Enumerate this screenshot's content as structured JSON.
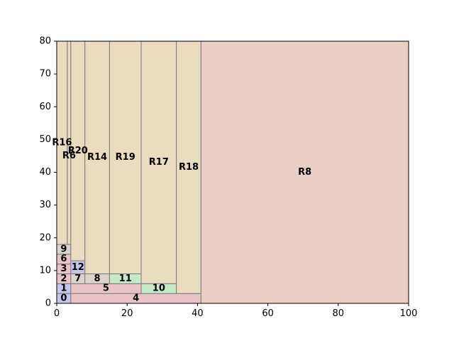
{
  "chart_data": {
    "type": "treemap-packing",
    "xlim": [
      0,
      100
    ],
    "ylim": [
      0,
      80
    ],
    "xticks": [
      0,
      20,
      40,
      60,
      80,
      100
    ],
    "yticks": [
      0,
      10,
      20,
      30,
      40,
      50,
      60,
      70,
      80
    ],
    "colors": {
      "blue": "#c5c5ec",
      "pink": "#eac3c8",
      "tan": "#eadcbf",
      "gray": "#dad4cc",
      "green": "#c6eac6",
      "salmon": "#ebcfc5"
    },
    "rects": [
      {
        "label": "0",
        "x": 0,
        "y": 0,
        "w": 4,
        "h": 3,
        "color": "blue",
        "lx": 2,
        "ly": 1.5
      },
      {
        "label": "1",
        "x": 0,
        "y": 3,
        "w": 4,
        "h": 3,
        "color": "blue",
        "lx": 2,
        "ly": 4.5
      },
      {
        "label": "2",
        "x": 0,
        "y": 6,
        "w": 4,
        "h": 3,
        "color": "pink",
        "lx": 2,
        "ly": 7.5
      },
      {
        "label": "3",
        "x": 0,
        "y": 9,
        "w": 4,
        "h": 3,
        "color": "pink",
        "lx": 2,
        "ly": 10.5
      },
      {
        "label": "6",
        "x": 0,
        "y": 12,
        "w": 4,
        "h": 3,
        "color": "pink",
        "lx": 2,
        "ly": 13.5
      },
      {
        "label": "9",
        "x": 0,
        "y": 15,
        "w": 4,
        "h": 3,
        "color": "gray",
        "lx": 2,
        "ly": 16.5
      },
      {
        "label": "R16",
        "x": 0,
        "y": 18,
        "w": 3,
        "h": 62,
        "color": "tan",
        "lx": 1.5,
        "ly": 49
      },
      {
        "label": "R6",
        "x": 3,
        "y": 18,
        "w": 1,
        "h": 62,
        "color": "tan",
        "lx": 3.5,
        "ly": 45
      },
      {
        "label": "4",
        "x": 4,
        "y": 0,
        "w": 37,
        "h": 3,
        "color": "pink",
        "lx": 22.5,
        "ly": 1.5
      },
      {
        "label": "5",
        "x": 4,
        "y": 3,
        "w": 20,
        "h": 3,
        "color": "pink",
        "lx": 14,
        "ly": 4.5
      },
      {
        "label": "10",
        "x": 24,
        "y": 3,
        "w": 10,
        "h": 3,
        "color": "green",
        "lx": 29,
        "ly": 4.5
      },
      {
        "label": "7",
        "x": 4,
        "y": 6,
        "w": 4,
        "h": 3,
        "color": "gray",
        "lx": 6,
        "ly": 7.5
      },
      {
        "label": "12",
        "x": 4,
        "y": 9,
        "w": 4,
        "h": 4,
        "color": "blue",
        "lx": 6,
        "ly": 11
      },
      {
        "label": "8",
        "x": 8,
        "y": 6,
        "w": 7,
        "h": 3,
        "color": "gray",
        "lx": 11.5,
        "ly": 7.5
      },
      {
        "label": "11",
        "x": 15,
        "y": 6,
        "w": 9,
        "h": 3,
        "color": "green",
        "lx": 19.5,
        "ly": 7.5
      },
      {
        "label": "R20",
        "x": 4,
        "y": 13,
        "w": 4,
        "h": 67,
        "color": "tan",
        "lx": 6,
        "ly": 46.5
      },
      {
        "label": "R14",
        "x": 8,
        "y": 9,
        "w": 7,
        "h": 71,
        "color": "tan",
        "lx": 11.5,
        "ly": 44.5
      },
      {
        "label": "R19",
        "x": 15,
        "y": 9,
        "w": 9,
        "h": 71,
        "color": "tan",
        "lx": 19.5,
        "ly": 44.5
      },
      {
        "label": "R17",
        "x": 24,
        "y": 6,
        "w": 10,
        "h": 74,
        "color": "tan",
        "lx": 29,
        "ly": 43
      },
      {
        "label": "R18",
        "x": 34,
        "y": 3,
        "w": 7,
        "h": 77,
        "color": "tan",
        "lx": 37.5,
        "ly": 41.5
      },
      {
        "label": "R8",
        "x": 41,
        "y": 0,
        "w": 59,
        "h": 80,
        "color": "salmon",
        "lx": 70.5,
        "ly": 40
      }
    ]
  }
}
